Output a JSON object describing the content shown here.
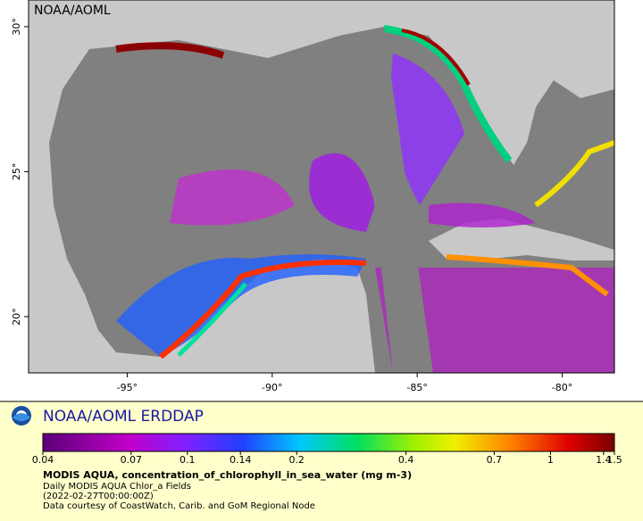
{
  "map": {
    "label": "NOAA/AOML",
    "xlim": [
      -98.4,
      -78.2
    ],
    "ylim": [
      18.06,
      30.92
    ],
    "xticks": [
      {
        "value": -95,
        "label": "-95°"
      },
      {
        "value": -90,
        "label": "-90°"
      },
      {
        "value": -85,
        "label": "-85°"
      },
      {
        "value": -80,
        "label": "-80°"
      }
    ],
    "yticks": [
      {
        "value": 20,
        "label": "20°"
      },
      {
        "value": 25,
        "label": "25°"
      },
      {
        "value": 30,
        "label": "30°"
      }
    ]
  },
  "legend": {
    "title": "NOAA/AOML ERDDAP",
    "scale": "log",
    "range": [
      0.04,
      1.5
    ],
    "ticks": [
      0.04,
      0.07,
      0.1,
      0.14,
      0.2,
      0.4,
      0.7,
      1,
      1.4,
      1.5
    ],
    "variable": "MODIS AQUA, concentration_of_chlorophyll_in_sea_water (mg m-3)",
    "lines": [
      "Daily MODIS AQUA Chlor_a Fields",
      "(2022-02-27T00:00:00Z)",
      "Data courtesy of CoastWatch, Carib. and GoM Regional Node"
    ]
  }
}
